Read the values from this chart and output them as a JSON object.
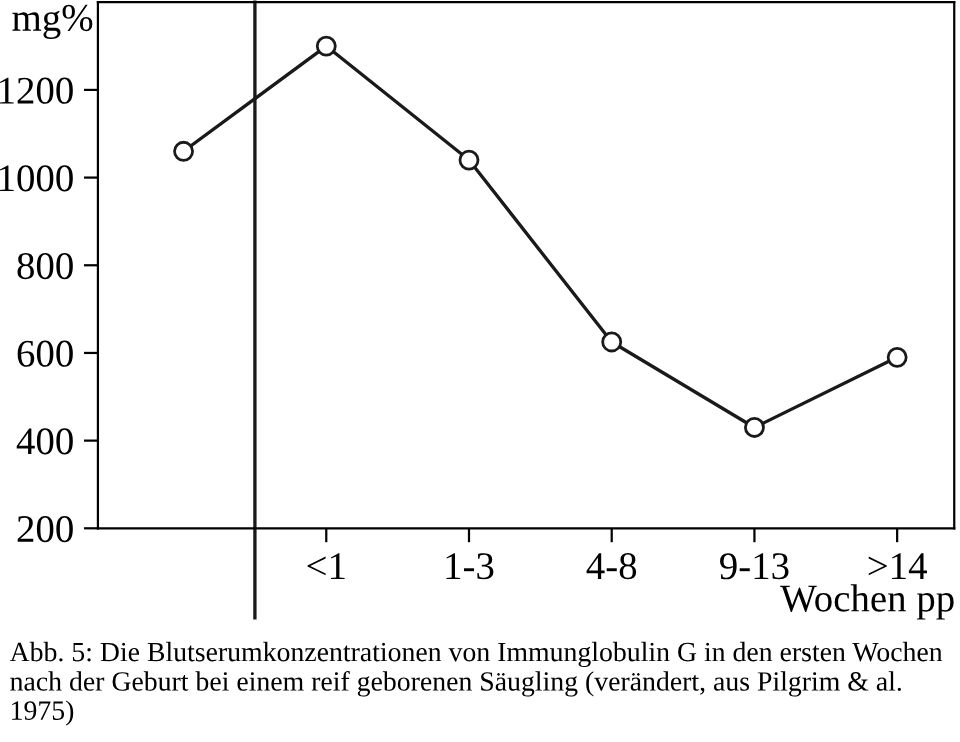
{
  "chart_data": {
    "type": "line",
    "ylabel": "mg%",
    "xlabel": "Wochen pp",
    "categories": [
      null,
      "<1",
      "1-3",
      "4-8",
      "9-13",
      ">14"
    ],
    "values": [
      1060,
      1300,
      1040,
      625,
      430,
      590
    ],
    "color": "#1a1a1a",
    "marker": "circle",
    "line_style": "solid",
    "ylim": [
      200,
      1400
    ],
    "yticks": [
      200,
      400,
      600,
      800,
      1000,
      1200
    ],
    "grid": false,
    "legend": false,
    "annotations": [
      "Abb. 5: Die Blutserumkonzentrationen von Immunglobulin G in den ersten Wochen nach der Geburt bei einem reif geborenen Säugling (verändert, aus Pilgrim & al. 1975)"
    ]
  }
}
